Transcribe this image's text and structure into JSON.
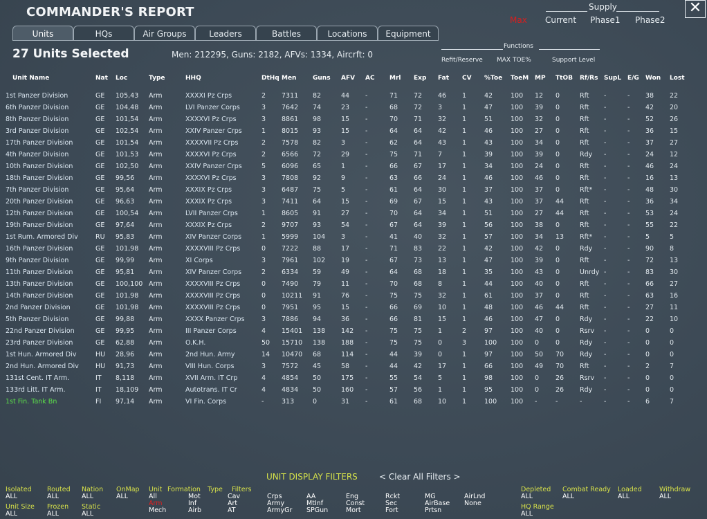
{
  "window": {
    "title": "COMMANDER'S REPORT",
    "close_glyph": "✕"
  },
  "tabs": [
    {
      "label": "Units",
      "active": true
    },
    {
      "label": "HQs"
    },
    {
      "label": "Air Groups"
    },
    {
      "label": "Leaders"
    },
    {
      "label": "Battles"
    },
    {
      "label": "Locations"
    },
    {
      "label": "Equipment"
    }
  ],
  "supply": {
    "label": "Supply",
    "options": [
      {
        "label": "Max",
        "active": true
      },
      {
        "label": "Current"
      },
      {
        "label": "Phase1"
      },
      {
        "label": "Phase2"
      }
    ],
    "active_color": "#d81e1e"
  },
  "selection": {
    "count_text": "27 Units Selected",
    "summary": "Men: 212295, Guns: 2182, AFVs: 1334, Aircrft: 0"
  },
  "functions": {
    "label": "Functions",
    "options": [
      "Refit/Reserve",
      "MAX TOE%",
      "Support Level"
    ]
  },
  "table": {
    "columns": [
      "Unit Name",
      "Nat",
      "Loc",
      "Type",
      "HHQ",
      "DtHq",
      "Men",
      "Guns",
      "AFV",
      "AC",
      "Mrl",
      "Exp",
      "Fat",
      "CV",
      "%Toe",
      "ToeM",
      "MP",
      "TtOB",
      "Rf/Rs",
      "SupL",
      "E/G",
      "Won",
      "Lost"
    ],
    "rows": [
      [
        "1st Panzer Division",
        "GE",
        "105,43",
        "Arm",
        "XXXXI Pz Crps",
        "2",
        "7311",
        "82",
        "44",
        "-",
        "71",
        "72",
        "46",
        "1",
        "42",
        "100",
        "12",
        "0",
        "Rft",
        "-",
        "-",
        "38",
        "22"
      ],
      [
        "6th Panzer Division",
        "GE",
        "104,48",
        "Arm",
        "LVI Panzer Corps",
        "3",
        "7642",
        "74",
        "23",
        "-",
        "68",
        "72",
        "3",
        "1",
        "47",
        "100",
        "39",
        "0",
        "Rft",
        "-",
        "-",
        "42",
        "20"
      ],
      [
        "8th Panzer Division",
        "GE",
        "101,54",
        "Arm",
        "XXXXVI Pz Crps",
        "3",
        "8861",
        "98",
        "15",
        "-",
        "70",
        "71",
        "32",
        "1",
        "51",
        "100",
        "32",
        "0",
        "Rft",
        "-",
        "-",
        "52",
        "26"
      ],
      [
        "3rd Panzer Division",
        "GE",
        "102,54",
        "Arm",
        "XXIV Panzer Crps",
        "1",
        "8015",
        "93",
        "15",
        "-",
        "64",
        "64",
        "42",
        "1",
        "46",
        "100",
        "27",
        "0",
        "Rft",
        "-",
        "-",
        "36",
        "15"
      ],
      [
        "17th Panzer Division",
        "GE",
        "101,54",
        "Arm",
        "XXXXVII Pz Crps",
        "2",
        "7578",
        "82",
        "3",
        "-",
        "62",
        "64",
        "43",
        "1",
        "43",
        "100",
        "34",
        "0",
        "Rft",
        "-",
        "-",
        "37",
        "27"
      ],
      [
        "4th Panzer Division",
        "GE",
        "101,53",
        "Arm",
        "XXXXVI Pz Crps",
        "2",
        "6566",
        "72",
        "29",
        "-",
        "75",
        "71",
        "7",
        "1",
        "39",
        "100",
        "39",
        "0",
        "Rdy",
        "-",
        "-",
        "24",
        "12"
      ],
      [
        "10th Panzer Division",
        "GE",
        "102,50",
        "Arm",
        "XXIV Panzer Crps",
        "5",
        "6096",
        "65",
        "1",
        "-",
        "66",
        "67",
        "17",
        "1",
        "34",
        "100",
        "24",
        "0",
        "Rft",
        "-",
        "-",
        "46",
        "24"
      ],
      [
        "18th Panzer Division",
        "GE",
        "99,56",
        "Arm",
        "XXXXVI Pz Crps",
        "3",
        "7808",
        "92",
        "9",
        "-",
        "63",
        "66",
        "24",
        "1",
        "46",
        "100",
        "46",
        "0",
        "Rft",
        "-",
        "-",
        "16",
        "13"
      ],
      [
        "7th Panzer Division",
        "GE",
        "95,64",
        "Arm",
        "XXXIX Pz Crps",
        "3",
        "6487",
        "75",
        "5",
        "-",
        "61",
        "64",
        "30",
        "1",
        "37",
        "100",
        "37",
        "0",
        "Rft*",
        "-",
        "-",
        "48",
        "30"
      ],
      [
        "20th Panzer Division",
        "GE",
        "96,63",
        "Arm",
        "XXXIX Pz Crps",
        "3",
        "7411",
        "64",
        "15",
        "-",
        "69",
        "67",
        "15",
        "1",
        "43",
        "100",
        "37",
        "44",
        "Rft",
        "-",
        "-",
        "36",
        "34"
      ],
      [
        "12th Panzer Division",
        "GE",
        "100,54",
        "Arm",
        "LVII Panzer Crps",
        "1",
        "8605",
        "91",
        "27",
        "-",
        "70",
        "64",
        "34",
        "1",
        "51",
        "100",
        "27",
        "44",
        "Rft",
        "-",
        "-",
        "53",
        "24"
      ],
      [
        "19th Panzer Division",
        "GE",
        "97,64",
        "Arm",
        "XXXIX Pz Crps",
        "2",
        "9707",
        "93",
        "54",
        "-",
        "67",
        "64",
        "39",
        "1",
        "56",
        "100",
        "38",
        "0",
        "Rft",
        "-",
        "-",
        "55",
        "22"
      ],
      [
        "1st Rum. Armored Div",
        "RU",
        "95,83",
        "Arm",
        "XIV Panzer Corps",
        "1",
        "5999",
        "104",
        "3",
        "-",
        "41",
        "40",
        "32",
        "1",
        "57",
        "100",
        "34",
        "13",
        "Rft*",
        "-",
        "-",
        "5",
        "5"
      ],
      [
        "16th Panzer Division",
        "GE",
        "101,98",
        "Arm",
        "XXXXVIII Pz Crps",
        "0",
        "7222",
        "88",
        "17",
        "-",
        "71",
        "83",
        "22",
        "1",
        "42",
        "100",
        "42",
        "0",
        "Rdy",
        "-",
        "-",
        "90",
        "8"
      ],
      [
        "9th Panzer Division",
        "GE",
        "99,99",
        "Arm",
        "XI Corps",
        "3",
        "7961",
        "102",
        "19",
        "-",
        "67",
        "73",
        "13",
        "1",
        "47",
        "100",
        "39",
        "0",
        "Rft",
        "-",
        "-",
        "72",
        "13"
      ],
      [
        "11th Panzer Division",
        "GE",
        "95,81",
        "Arm",
        "XIV Panzer Corps",
        "2",
        "6334",
        "59",
        "49",
        "-",
        "64",
        "68",
        "18",
        "1",
        "35",
        "100",
        "43",
        "0",
        "Unrdy",
        "-",
        "-",
        "83",
        "30"
      ],
      [
        "13th Panzer Division",
        "GE",
        "100,100",
        "Arm",
        "XXXXVIII Pz Crps",
        "0",
        "7490",
        "79",
        "11",
        "-",
        "70",
        "68",
        "8",
        "1",
        "44",
        "100",
        "40",
        "0",
        "Rft",
        "-",
        "-",
        "66",
        "27"
      ],
      [
        "14th Panzer Division",
        "GE",
        "101,98",
        "Arm",
        "XXXXVIII Pz Crps",
        "0",
        "10211",
        "91",
        "76",
        "-",
        "75",
        "75",
        "32",
        "1",
        "61",
        "100",
        "37",
        "0",
        "Rft",
        "-",
        "-",
        "63",
        "16"
      ],
      [
        "2nd Panzer Division",
        "GE",
        "101,98",
        "Arm",
        "XXXXVIII Pz Crps",
        "0",
        "7951",
        "95",
        "15",
        "-",
        "66",
        "69",
        "10",
        "1",
        "48",
        "100",
        "46",
        "44",
        "Rft",
        "-",
        "-",
        "27",
        "11"
      ],
      [
        "5th Panzer Division",
        "GE",
        "99,88",
        "Arm",
        "XXXX Panzer Crps",
        "3",
        "7886",
        "94",
        "36",
        "-",
        "66",
        "81",
        "15",
        "1",
        "46",
        "100",
        "47",
        "0",
        "Rdy",
        "-",
        "-",
        "22",
        "10"
      ],
      [
        "22nd Panzer Division",
        "GE",
        "99,95",
        "Arm",
        "III Panzer Corps",
        "4",
        "15401",
        "138",
        "142",
        "-",
        "75",
        "75",
        "1",
        "2",
        "97",
        "100",
        "40",
        "0",
        "Rsrv",
        "-",
        "-",
        "0",
        "0"
      ],
      [
        "23rd Panzer Division",
        "GE",
        "62,88",
        "Arm",
        "O.K.H.",
        "50",
        "15710",
        "138",
        "188",
        "-",
        "75",
        "75",
        "0",
        "3",
        "100",
        "100",
        "0",
        "0",
        "Rdy",
        "-",
        "-",
        "0",
        "0"
      ],
      [
        "1st Hun. Armored Div",
        "HU",
        "28,96",
        "Arm",
        "2nd Hun. Army",
        "14",
        "10470",
        "68",
        "114",
        "-",
        "44",
        "39",
        "0",
        "1",
        "97",
        "100",
        "50",
        "70",
        "Rdy",
        "-",
        "-",
        "0",
        "0"
      ],
      [
        "2nd Hun. Armored Div",
        "HU",
        "91,73",
        "Arm",
        "VIII Hun. Corps",
        "3",
        "7572",
        "45",
        "58",
        "-",
        "44",
        "42",
        "17",
        "1",
        "66",
        "100",
        "49",
        "70",
        "Rft",
        "-",
        "-",
        "2",
        "7"
      ],
      [
        "131st Cent. IT Arm.",
        "IT",
        "8,118",
        "Arm",
        "XVII Arm. IT Crp",
        "4",
        "4854",
        "50",
        "175",
        "-",
        "55",
        "54",
        "5",
        "1",
        "98",
        "100",
        "0",
        "26",
        "Rsrv",
        "-",
        "-",
        "0",
        "0"
      ],
      [
        "133rd Litt. IT Arm.",
        "IT",
        "18,109",
        "Arm",
        "Autotrans. IT Cr",
        "4",
        "4834",
        "50",
        "160",
        "-",
        "57",
        "56",
        "1",
        "1",
        "95",
        "100",
        "0",
        "26",
        "Rdy",
        "-",
        "-",
        "0",
        "0"
      ],
      [
        "1st Fin. Tank Bn",
        "FI",
        "97,14",
        "Arm",
        "VI Fin. Corps",
        "-",
        "313",
        "0",
        "31",
        "-",
        "61",
        "68",
        "10",
        "1",
        "100",
        "100",
        "-",
        "-",
        "-",
        "-",
        "-",
        "6",
        "7"
      ]
    ],
    "highlight_last_row_color": "#5ce04a"
  },
  "filters": {
    "title": "UNIT DISPLAY FILTERS",
    "clear": "< Clear All Filters >",
    "groups": [
      {
        "label": "Isolated",
        "value": "ALL"
      },
      {
        "label": "Routed",
        "value": "ALL"
      },
      {
        "label": "Nation",
        "value": "ALL"
      },
      {
        "label": "OnMap",
        "value": "ALL"
      },
      {
        "label": "Unit Size",
        "value": "ALL"
      },
      {
        "label": "Frozen",
        "value": "ALL"
      },
      {
        "label": "Static",
        "value": "ALL"
      },
      {
        "label": "Depleted",
        "value": "ALL"
      },
      {
        "label": "Combat Ready",
        "value": "ALL"
      },
      {
        "label": "Loaded",
        "value": "ALL"
      },
      {
        "label": "Withdraw",
        "value": "ALL"
      },
      {
        "label": "HQ Range",
        "value": "ALL"
      }
    ],
    "unit_formation_label": "Unit",
    "formation_label": "Formation",
    "type_label": "Type",
    "filters_label": "Filters",
    "unit_col": [
      "All",
      "Arm",
      "Mech"
    ],
    "formation_col": [
      "Mot",
      "Inf",
      "Airb"
    ],
    "type_col": [
      "Cav",
      "Art",
      "AT"
    ],
    "types_a": [
      "Crps",
      "Army",
      "ArmyGr"
    ],
    "types_b": [
      "AA",
      "MtInf",
      "SPGun"
    ],
    "types_c": [
      "Eng",
      "Const",
      "Mort"
    ],
    "types_d": [
      "Rckt",
      "Sec",
      "Fort"
    ],
    "types_e": [
      "MG",
      "AirBase",
      "Prtsn"
    ],
    "types_f": [
      "AirLnd",
      "None"
    ]
  }
}
